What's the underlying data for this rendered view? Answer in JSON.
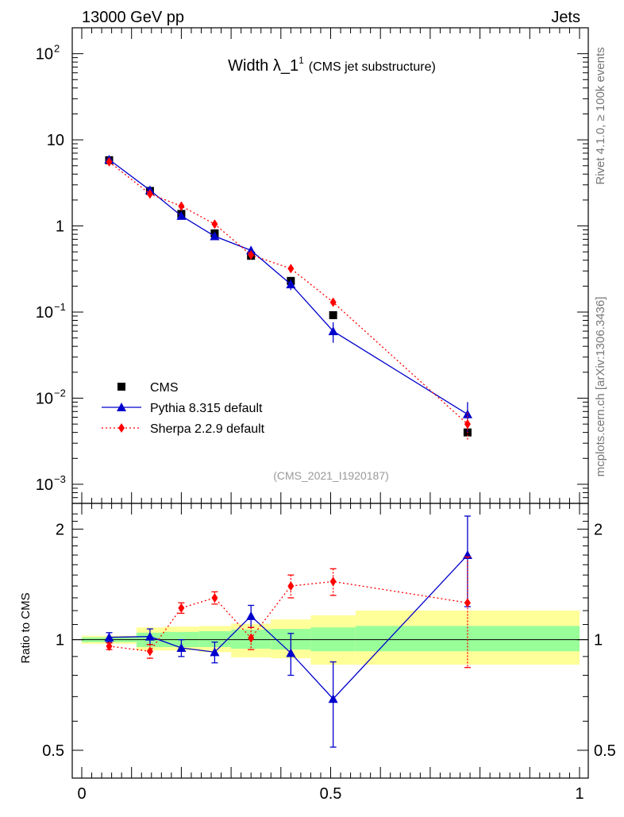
{
  "header": {
    "energy_label": "13000 GeV pp",
    "category_label": "Jets"
  },
  "side_labels": {
    "rivet": "Rivet 4.1.0, ≥ 100k events",
    "mcplots": "mcplots.cern.ch [arXiv:1306.3436]"
  },
  "chart_data": {
    "type": "line",
    "title": "Width λ_1",
    "title_superscript": "1",
    "subtitle": "(CMS jet substructure)",
    "watermark": "(CMS_2021_I1920187)",
    "ratio_ylabel": "Ratio to CMS",
    "xlim": [
      0,
      1
    ],
    "ylim_main": [
      0.0006,
      200
    ],
    "ylim_ratio": [
      0.42,
      2.35
    ],
    "x_ticks": [
      {
        "value": 0,
        "label": "0"
      },
      {
        "value": 0.5,
        "label": "0.5"
      },
      {
        "value": 1,
        "label": "1"
      }
    ],
    "y_ticks_main": [
      {
        "value": 100,
        "label": "10",
        "exp": "2"
      },
      {
        "value": 10,
        "label": "10",
        "exp": ""
      },
      {
        "value": 1,
        "label": "1",
        "exp": ""
      },
      {
        "value": 0.1,
        "label": "10",
        "exp": "−1"
      },
      {
        "value": 0.01,
        "label": "10",
        "exp": "−2"
      },
      {
        "value": 0.001,
        "label": "10",
        "exp": "−3"
      }
    ],
    "y_ticks_ratio": [
      {
        "value": 0.5,
        "label": "0.5"
      },
      {
        "value": 1,
        "label": "1"
      },
      {
        "value": 2,
        "label": "2"
      }
    ],
    "bins": [
      0,
      0.11,
      0.165,
      0.235,
      0.3,
      0.38,
      0.46,
      0.55,
      1.0
    ],
    "band_inner": [
      [
        0.985,
        1.015
      ],
      [
        0.955,
        1.045
      ],
      [
        0.955,
        1.05
      ],
      [
        0.955,
        1.055
      ],
      [
        0.945,
        1.065
      ],
      [
        0.94,
        1.07
      ],
      [
        0.93,
        1.08
      ],
      [
        0.93,
        1.09
      ]
    ],
    "band_outer": [
      [
        0.975,
        1.025
      ],
      [
        0.935,
        1.08
      ],
      [
        0.935,
        1.085
      ],
      [
        0.925,
        1.09
      ],
      [
        0.895,
        1.105
      ],
      [
        0.89,
        1.135
      ],
      [
        0.855,
        1.165
      ],
      [
        0.855,
        1.2
      ]
    ],
    "legend": {
      "position": "bottom-left"
    },
    "series": [
      {
        "name": "CMS",
        "marker": "square",
        "color": "#000000",
        "x": [
          0.055,
          0.137,
          0.2,
          0.267,
          0.34,
          0.42,
          0.505,
          0.775
        ],
        "y": [
          5.8,
          2.55,
          1.38,
          0.82,
          0.45,
          0.23,
          0.092,
          0.004
        ]
      },
      {
        "name": "Pythia 8.315 default",
        "marker": "triangle",
        "color": "#0000cc",
        "x": [
          0.055,
          0.137,
          0.2,
          0.267,
          0.34,
          0.42,
          0.505,
          0.775
        ],
        "y": [
          5.9,
          2.6,
          1.31,
          0.76,
          0.52,
          0.21,
          0.06,
          0.0065
        ],
        "yerr": [
          0,
          0,
          0,
          0,
          0.06,
          0.03,
          0.016,
          0.0025
        ],
        "ratio": [
          1.015,
          1.02,
          0.95,
          0.925,
          1.16,
          0.92,
          0.69,
          1.7
        ],
        "ratio_err": [
          0.03,
          0.05,
          0.05,
          0.06,
          0.08,
          0.12,
          0.18,
          0.47
        ]
      },
      {
        "name": "Sherpa 2.2.9 default",
        "marker": "diamond",
        "color": "#ff0000",
        "linestyle": "dotted",
        "x": [
          0.055,
          0.137,
          0.2,
          0.267,
          0.34,
          0.42,
          0.505,
          0.775
        ],
        "y": [
          5.55,
          2.35,
          1.7,
          1.05,
          0.46,
          0.32,
          0.13,
          0.005
        ],
        "yerr": [
          0,
          0,
          0,
          0,
          0,
          0.03,
          0.015,
          0.0018
        ],
        "ratio": [
          0.96,
          0.93,
          1.22,
          1.3,
          1.01,
          1.4,
          1.44,
          1.26
        ],
        "ratio_err": [
          0.02,
          0.04,
          0.04,
          0.05,
          0.07,
          0.1,
          0.12,
          0.42
        ]
      }
    ]
  }
}
